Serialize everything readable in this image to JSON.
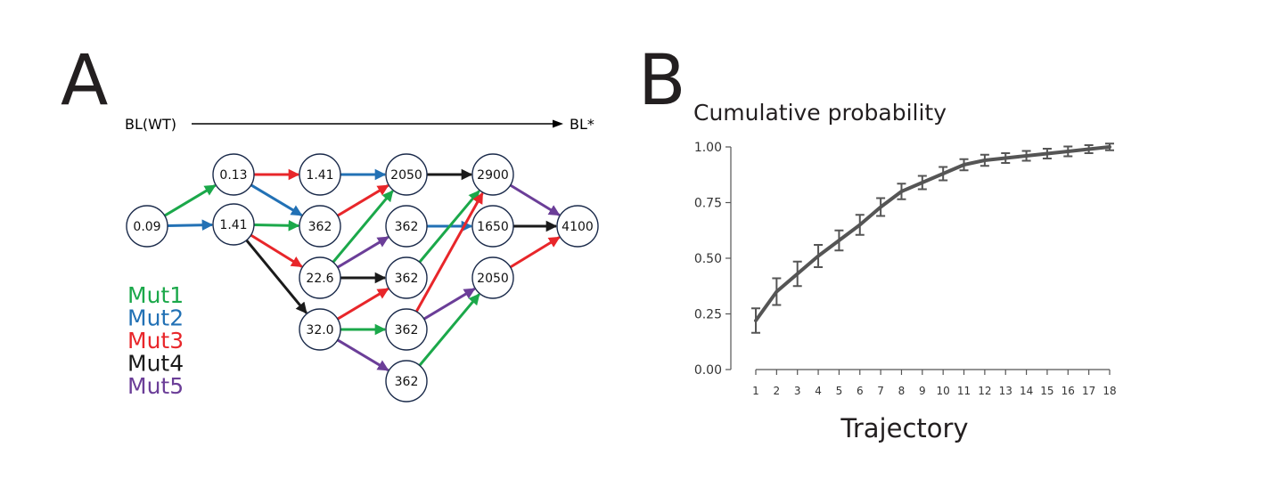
{
  "panel_a": {
    "label": "A",
    "axis_start": "BL(WT)",
    "axis_end": "BL*",
    "nodes": [
      {
        "id": "n1",
        "label": "0.09"
      },
      {
        "id": "n2",
        "label": "0.13"
      },
      {
        "id": "n3",
        "label": "1.41"
      },
      {
        "id": "n4",
        "label": "1.41"
      },
      {
        "id": "n5",
        "label": "362"
      },
      {
        "id": "n6",
        "label": "22.6"
      },
      {
        "id": "n7",
        "label": "32.0"
      },
      {
        "id": "n8",
        "label": "2050"
      },
      {
        "id": "n9",
        "label": "362"
      },
      {
        "id": "n10",
        "label": "362"
      },
      {
        "id": "n11",
        "label": "362"
      },
      {
        "id": "n12",
        "label": "362"
      },
      {
        "id": "n13",
        "label": "2900"
      },
      {
        "id": "n14",
        "label": "1650"
      },
      {
        "id": "n15",
        "label": "2050"
      },
      {
        "id": "n16",
        "label": "4100"
      }
    ],
    "edges": [
      {
        "from": "n1",
        "to": "n2",
        "mutation": "Mut1"
      },
      {
        "from": "n1",
        "to": "n3",
        "mutation": "Mut2"
      },
      {
        "from": "n2",
        "to": "n4",
        "mutation": "Mut3"
      },
      {
        "from": "n2",
        "to": "n5",
        "mutation": "Mut2"
      },
      {
        "from": "n3",
        "to": "n5",
        "mutation": "Mut1"
      },
      {
        "from": "n3",
        "to": "n6",
        "mutation": "Mut3"
      },
      {
        "from": "n3",
        "to": "n7",
        "mutation": "Mut4"
      },
      {
        "from": "n4",
        "to": "n8",
        "mutation": "Mut2"
      },
      {
        "from": "n5",
        "to": "n8",
        "mutation": "Mut3"
      },
      {
        "from": "n6",
        "to": "n8",
        "mutation": "Mut1"
      },
      {
        "from": "n6",
        "to": "n9",
        "mutation": "Mut5"
      },
      {
        "from": "n6",
        "to": "n10",
        "mutation": "Mut4"
      },
      {
        "from": "n7",
        "to": "n10",
        "mutation": "Mut3"
      },
      {
        "from": "n7",
        "to": "n11",
        "mutation": "Mut1"
      },
      {
        "from": "n7",
        "to": "n12",
        "mutation": "Mut5"
      },
      {
        "from": "n8",
        "to": "n13",
        "mutation": "Mut4"
      },
      {
        "from": "n9",
        "to": "n14",
        "mutation": "Mut2"
      },
      {
        "from": "n10",
        "to": "n13",
        "mutation": "Mut1"
      },
      {
        "from": "n11",
        "to": "n13",
        "mutation": "Mut3"
      },
      {
        "from": "n11",
        "to": "n15",
        "mutation": "Mut5"
      },
      {
        "from": "n12",
        "to": "n15",
        "mutation": "Mut1"
      },
      {
        "from": "n13",
        "to": "n16",
        "mutation": "Mut5"
      },
      {
        "from": "n14",
        "to": "n16",
        "mutation": "Mut4"
      },
      {
        "from": "n15",
        "to": "n16",
        "mutation": "Mut3"
      }
    ],
    "legend": [
      {
        "name": "Mut1",
        "color": "#1ba84a"
      },
      {
        "name": "Mut2",
        "color": "#2271b5"
      },
      {
        "name": "Mut3",
        "color": "#e8262a"
      },
      {
        "name": "Mut4",
        "color": "#1a1a1a"
      },
      {
        "name": "Mut5",
        "color": "#6b3e98"
      }
    ]
  },
  "panel_b": {
    "label": "B",
    "chart_data": {
      "type": "line",
      "title": "Cumulative probability",
      "xlabel": "Trajectory",
      "ylabel": "",
      "x": [
        1,
        2,
        3,
        4,
        5,
        6,
        7,
        8,
        9,
        10,
        11,
        12,
        13,
        14,
        15,
        16,
        17,
        18
      ],
      "series": [
        {
          "values": [
            0.22,
            0.35,
            0.43,
            0.51,
            0.58,
            0.65,
            0.73,
            0.8,
            0.84,
            0.88,
            0.92,
            0.94,
            0.95,
            0.96,
            0.97,
            0.98,
            0.99,
            1.0
          ],
          "error": [
            0.055,
            0.06,
            0.055,
            0.05,
            0.045,
            0.045,
            0.04,
            0.035,
            0.03,
            0.03,
            0.025,
            0.025,
            0.022,
            0.022,
            0.022,
            0.022,
            0.018,
            0.015
          ],
          "color": "#555555"
        }
      ],
      "yticks": [
        "0.00",
        "0.25",
        "0.50",
        "0.75",
        "1.00"
      ],
      "xticks": [
        "1",
        "2",
        "3",
        "4",
        "5",
        "6",
        "7",
        "8",
        "9",
        "10",
        "11",
        "12",
        "13",
        "14",
        "15",
        "16",
        "17",
        "18"
      ],
      "ylim": [
        0,
        1
      ],
      "xlim": [
        1,
        18
      ],
      "grid": false
    }
  }
}
